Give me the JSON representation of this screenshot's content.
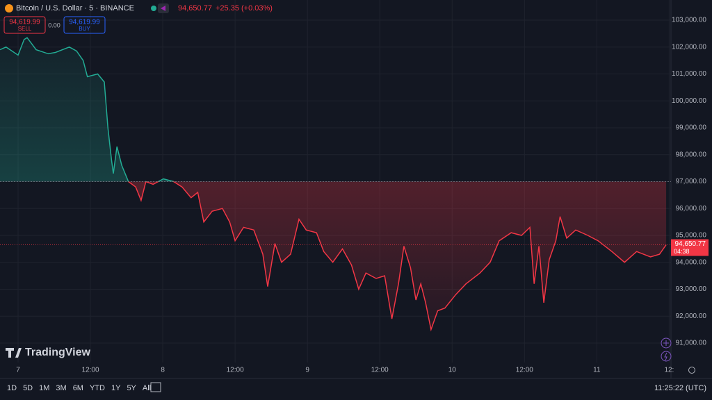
{
  "header": {
    "symbol": "Bitcoin / U.S. Dollar · 5 · BINANCE",
    "price": "94,650.77",
    "change": "+25.35 (+0.03%)",
    "sell_price": "94,619.99",
    "sell_label": "SELL",
    "spread": "0.00",
    "buy_price": "94,619.99",
    "buy_label": "BUY"
  },
  "logo": "TradingView",
  "toolbar": {
    "ranges": [
      "1D",
      "5D",
      "1M",
      "3M",
      "6M",
      "YTD",
      "1Y",
      "5Y",
      "All"
    ],
    "clock": "11:25:22 (UTC)"
  },
  "chart_data": {
    "type": "baseline",
    "baseline": 97000,
    "up_color": "#22ab94",
    "down_color": "#f23645",
    "last_price": 94650.77,
    "last_price_label": "94,650.77",
    "countdown": "04:38",
    "x": [
      -3,
      -2,
      0,
      1,
      1.5,
      3,
      5,
      6.2,
      8.5,
      9.7,
      10.8,
      11.5,
      13.2,
      14.3,
      14.9,
      15.5,
      15.8,
      16.4,
      17.2,
      18.3,
      19.5,
      20.4,
      21.2,
      22.4,
      24.1,
      25.8,
      27.2,
      28.7,
      29.8,
      30.8,
      32.2,
      33.9,
      35.1,
      36,
      37.4,
      39.1,
      40.6,
      41.4,
      42.6,
      43.7,
      45.2,
      46.6,
      47.8,
      49.5,
      50.7,
      52.2,
      53.8,
      55.3,
      56.5,
      57.7,
      59.4,
      60.8,
      62,
      63.1,
      64,
      65.1,
      66,
      66.8,
      67.6,
      68.5,
      69.6,
      70.8,
      72.6,
      74.3,
      76.6,
      78.3,
      79.8,
      81.8,
      83.5,
      84.9,
      85.6,
      86.4,
      87.2,
      88.1,
      89.2,
      89.9,
      91,
      92.5,
      94.5,
      96.2,
      98.5,
      100.6,
      102.6,
      104.9,
      106.4,
      107.5
    ],
    "values": [
      101900,
      102000,
      101700,
      102280,
      102350,
      101900,
      101750,
      101800,
      102000,
      101850,
      101500,
      100900,
      101000,
      100700,
      99000,
      97800,
      97300,
      98300,
      97600,
      97000,
      96800,
      96300,
      97000,
      96900,
      97100,
      97000,
      96800,
      96400,
      96600,
      95500,
      95900,
      96000,
      95500,
      94800,
      95300,
      95200,
      94300,
      93100,
      94700,
      94000,
      94300,
      95600,
      95200,
      95100,
      94400,
      94000,
      94500,
      93900,
      93000,
      93600,
      93400,
      93500,
      91900,
      93200,
      94600,
      93800,
      92600,
      93200,
      92500,
      91500,
      92200,
      92300,
      92800,
      93200,
      93600,
      94000,
      94800,
      95100,
      95000,
      95300,
      93200,
      94600,
      92500,
      94100,
      94800,
      95700,
      94900,
      95200,
      95000,
      94800,
      94400,
      94000,
      94400,
      94200,
      94300,
      94650.77
    ],
    "xlim": [
      -3,
      108.3
    ],
    "ylim": [
      90277,
      103748
    ],
    "xticks": [
      {
        "value": 0,
        "label": "7"
      },
      {
        "value": 12,
        "label": "12:00"
      },
      {
        "value": 24,
        "label": "8"
      },
      {
        "value": 36,
        "label": "12:00"
      },
      {
        "value": 48,
        "label": "9"
      },
      {
        "value": 60,
        "label": "12:00"
      },
      {
        "value": 72,
        "label": "10"
      },
      {
        "value": 84,
        "label": "12:00"
      },
      {
        "value": 96,
        "label": "11"
      },
      {
        "value": 108,
        "label": "12:"
      }
    ],
    "yticks": [
      {
        "value": 91000,
        "label": "91,000.00"
      },
      {
        "value": 92000,
        "label": "92,000.00"
      },
      {
        "value": 93000,
        "label": "93,000.00"
      },
      {
        "value": 94000,
        "label": "94,000.00"
      },
      {
        "value": 95000,
        "label": "95,000.00"
      },
      {
        "value": 96000,
        "label": "96,000.00"
      },
      {
        "value": 97000,
        "label": "97,000.00"
      },
      {
        "value": 98000,
        "label": "98,000.00"
      },
      {
        "value": 99000,
        "label": "99,000.00"
      },
      {
        "value": 100000,
        "label": "100,000.00"
      },
      {
        "value": 101000,
        "label": "101,000.00"
      },
      {
        "value": 102000,
        "label": "102,000.00"
      },
      {
        "value": 103000,
        "label": "103,000.00"
      }
    ],
    "grid": true
  }
}
